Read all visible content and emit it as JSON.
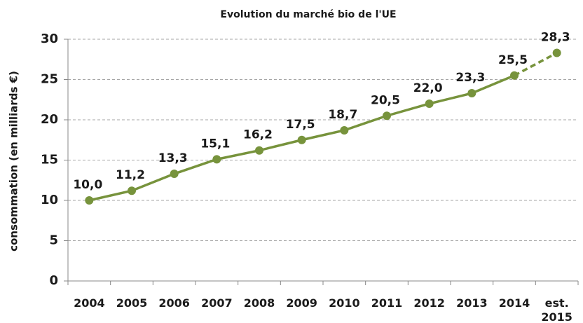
{
  "chart_data": {
    "type": "line",
    "title": "Evolution du marché bio de l'UE",
    "y_label": "consommation (en milliards €)",
    "categories": [
      "2004",
      "2005",
      "2006",
      "2007",
      "2008",
      "2009",
      "2010",
      "2011",
      "2012",
      "2013",
      "2014",
      "est. 2015"
    ],
    "values": [
      10.0,
      11.2,
      13.3,
      15.1,
      16.2,
      17.5,
      18.7,
      20.5,
      22.0,
      23.3,
      25.5,
      28.3
    ],
    "value_labels": [
      "10,0",
      "11,2",
      "13,3",
      "15,1",
      "16,2",
      "17,5",
      "18,7",
      "20,5",
      "22,0",
      "23,3",
      "25,5",
      "28,3"
    ],
    "color": "#77933c",
    "dashed_last_segment": true,
    "ylim": [
      0,
      30
    ],
    "yticks": [
      0,
      5,
      10,
      15,
      20,
      25,
      30
    ],
    "grid": true
  }
}
